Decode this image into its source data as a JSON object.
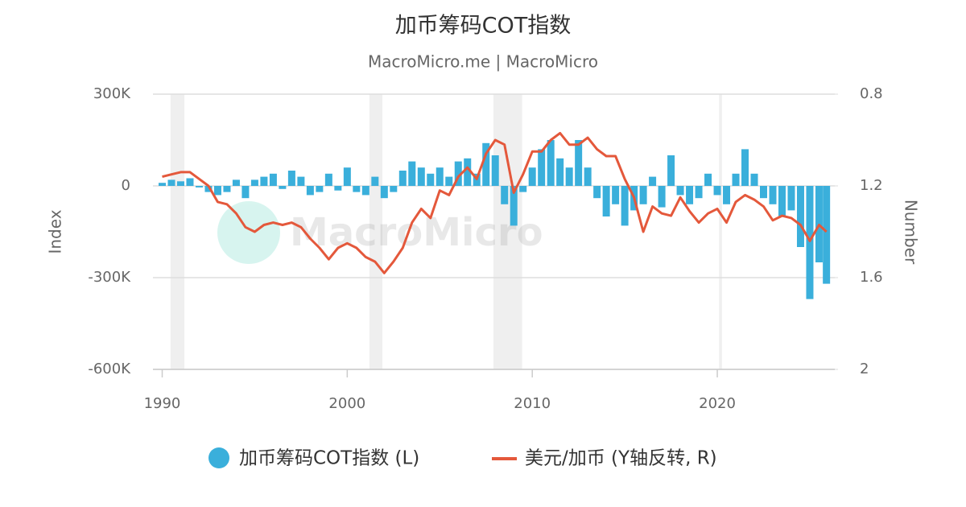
{
  "chart_data": {
    "type": "bar-line",
    "title": "加币筹码COT指数",
    "subtitle": "MacroMicro.me | MacroMicro",
    "watermark": "MacroMicro",
    "y_label": "Index",
    "y2_label": "Number",
    "x": [
      1990,
      1990.5,
      1991,
      1991.5,
      1992,
      1992.5,
      1993,
      1993.5,
      1994,
      1994.5,
      1995,
      1995.5,
      1996,
      1996.5,
      1997,
      1997.5,
      1998,
      1998.5,
      1999,
      1999.5,
      2000,
      2000.5,
      2001,
      2001.5,
      2002,
      2002.5,
      2003,
      2003.5,
      2004,
      2004.5,
      2005,
      2005.5,
      2006,
      2006.5,
      2007,
      2007.5,
      2008,
      2008.5,
      2009,
      2009.5,
      2010,
      2010.5,
      2011,
      2011.5,
      2012,
      2012.5,
      2013,
      2013.5,
      2014,
      2014.5,
      2015,
      2015.5,
      2016,
      2016.5,
      2017,
      2017.5,
      2018,
      2018.5,
      2019,
      2019.5,
      2020,
      2020.5,
      2021,
      2021.5,
      2022,
      2022.5,
      2023,
      2023.5,
      2024,
      2024.5,
      2025,
      2025.5,
      2025.9
    ],
    "series": [
      {
        "name": "加币筹码COT指数 (L)",
        "type": "bar",
        "color": "#3aafdb",
        "values": [
          10000,
          20000,
          15000,
          25000,
          -5000,
          -20000,
          -30000,
          -20000,
          20000,
          -40000,
          20000,
          30000,
          40000,
          -10000,
          50000,
          30000,
          -30000,
          -20000,
          40000,
          -15000,
          60000,
          -20000,
          -30000,
          30000,
          -40000,
          -20000,
          50000,
          80000,
          60000,
          40000,
          60000,
          30000,
          80000,
          90000,
          40000,
          140000,
          100000,
          -60000,
          -130000,
          -20000,
          60000,
          120000,
          150000,
          90000,
          60000,
          150000,
          60000,
          -40000,
          -100000,
          -60000,
          -130000,
          -80000,
          -60000,
          30000,
          -70000,
          100000,
          -30000,
          -60000,
          -40000,
          40000,
          -30000,
          -60000,
          40000,
          120000,
          40000,
          -40000,
          -60000,
          -100000,
          -80000,
          -200000,
          -370000,
          -250000,
          -320000
        ]
      },
      {
        "name": "美元/加币 (Y轴反转, R)",
        "type": "line",
        "axis": "y2",
        "color": "#e4583b",
        "values": [
          1.16,
          1.15,
          1.14,
          1.14,
          1.17,
          1.2,
          1.27,
          1.28,
          1.32,
          1.38,
          1.4,
          1.37,
          1.36,
          1.37,
          1.36,
          1.38,
          1.43,
          1.47,
          1.52,
          1.47,
          1.45,
          1.47,
          1.51,
          1.53,
          1.58,
          1.53,
          1.47,
          1.36,
          1.3,
          1.34,
          1.22,
          1.24,
          1.16,
          1.12,
          1.17,
          1.06,
          1.0,
          1.02,
          1.23,
          1.15,
          1.05,
          1.05,
          1.0,
          0.97,
          1.02,
          1.02,
          0.99,
          1.04,
          1.07,
          1.07,
          1.17,
          1.25,
          1.4,
          1.29,
          1.32,
          1.33,
          1.25,
          1.31,
          1.36,
          1.32,
          1.3,
          1.36,
          1.27,
          1.24,
          1.26,
          1.29,
          1.35,
          1.33,
          1.34,
          1.37,
          1.44,
          1.37,
          1.4
        ]
      }
    ],
    "shaded_periods": [
      [
        1990.45,
        1991.2
      ],
      [
        2001.2,
        2001.9
      ],
      [
        2007.9,
        2009.45
      ],
      [
        2020.1,
        2020.25
      ]
    ],
    "shade_color": "#efefef",
    "xlim": [
      1989.5,
      2026.35
    ],
    "xticks": [
      1990,
      2000,
      2010,
      2020
    ],
    "ylim": [
      -600000,
      300000
    ],
    "yticks": [
      {
        "value": -600000,
        "label": "-600K"
      },
      {
        "value": -300000,
        "label": "-300K"
      },
      0,
      {
        "value": 300000,
        "label": "300K"
      }
    ],
    "y2lim": [
      0.8,
      2
    ],
    "y2_reversed": true,
    "y2ticks": [
      0.8,
      1.2,
      1.6,
      2
    ],
    "grid": true
  }
}
